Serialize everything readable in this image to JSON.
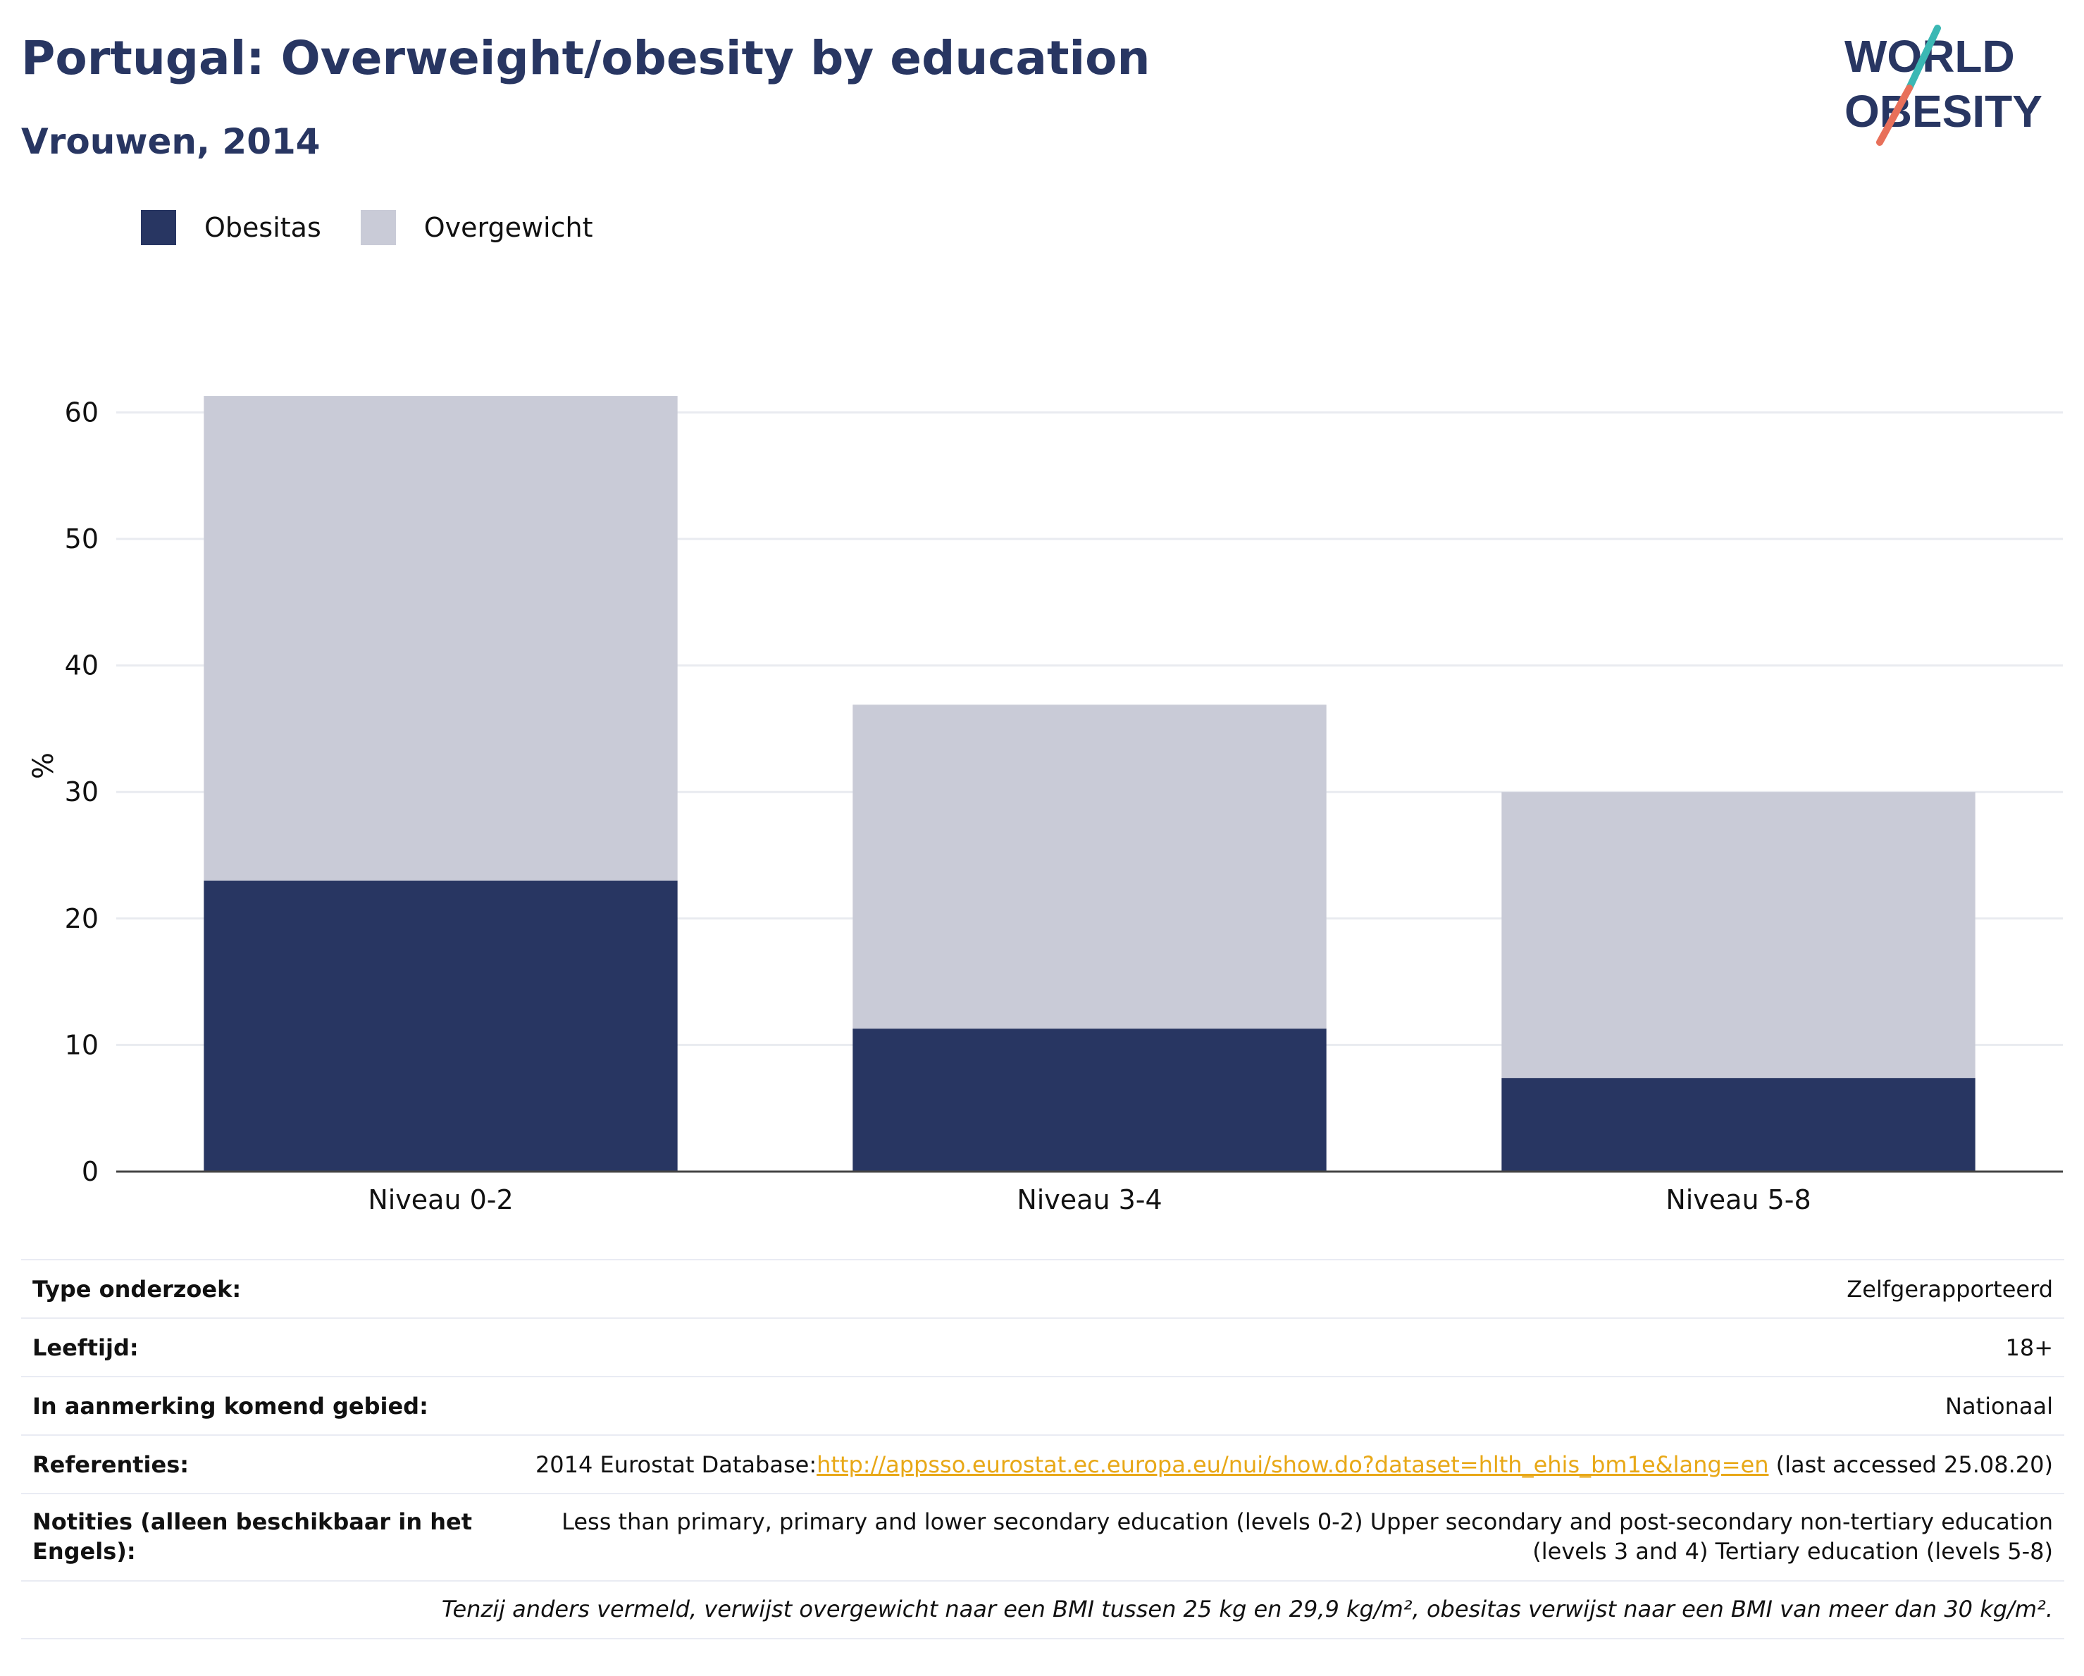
{
  "title": "Portugal: Overweight/obesity by education",
  "subtitle": "Vrouwen, 2014",
  "logo": {
    "line1": "WORLD",
    "line2": "OBESITY",
    "colors": {
      "text": "#283662",
      "slash_top": "#3bb8b4",
      "slash_bottom": "#e8705a"
    }
  },
  "legend": [
    {
      "label": "Obesitas",
      "color": "#283662"
    },
    {
      "label": "Overgewicht",
      "color": "#c9cbd7"
    }
  ],
  "chart_data": {
    "type": "bar",
    "stacked": true,
    "categories": [
      "Niveau 0-2",
      "Niveau 3-4",
      "Niveau 5-8"
    ],
    "series": [
      {
        "name": "Obesitas",
        "values": [
          23.0,
          11.3,
          7.4
        ],
        "color": "#283662"
      },
      {
        "name": "Overgewicht",
        "values": [
          38.3,
          25.6,
          22.6
        ],
        "color": "#c9cbd7"
      }
    ],
    "ylabel": "%",
    "ylim": [
      0,
      65
    ],
    "yticks": [
      0,
      10,
      20,
      30,
      40,
      50,
      60
    ],
    "grid": true
  },
  "meta": {
    "survey_type": {
      "label": "Type onderzoek:",
      "value": "Zelfgerapporteerd"
    },
    "age": {
      "label": "Leeftijd:",
      "value": "18+"
    },
    "area": {
      "label": "In aanmerking komend gebied:",
      "value": "Nationaal"
    },
    "references": {
      "label": "Referenties:",
      "prefix": "2014 Eurostat Database:",
      "link": "http://appsso.eurostat.ec.europa.eu/nui/show.do?dataset=hlth_ehis_bm1e&lang=en",
      "suffix": " (last accessed 25.08.20)"
    },
    "notes": {
      "label": "Notities (alleen beschikbaar in het Engels):",
      "value": "Less than primary, primary and lower secondary education (levels 0-2) Upper secondary and post-secondary non-tertiary education (levels 3 and 4) Tertiary education (levels 5-8)"
    },
    "footnote": "Tenzij anders vermeld, verwijst overgewicht naar een BMI tussen 25 kg en 29,9 kg/m², obesitas verwijst naar een BMI van meer dan 30 kg/m²."
  }
}
